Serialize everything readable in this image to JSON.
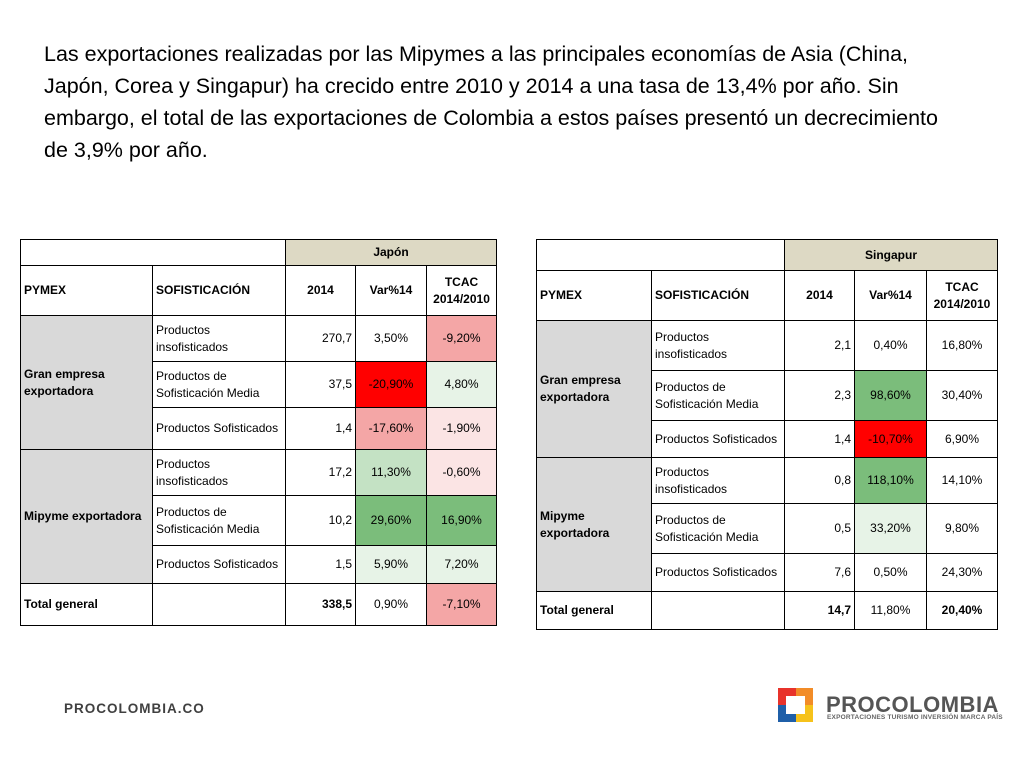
{
  "intro": "Las exportaciones realizadas por las Mipymes a las principales economías de Asia (China, Japón, Corea y Singapur) ha crecido entre 2010 y 2014 a una tasa de 13,4% por año. Sin embargo, el total de las exportaciones de Colombia a estos países presentó un decrecimiento de 3,9% por año.",
  "columns": {
    "pymex": "PYMEX",
    "sofisticacion": "SOFISTICACIÓN",
    "y2014": "2014",
    "var": "Var%14",
    "tcac": "TCAC 2014/2010"
  },
  "groups": {
    "gran": "Gran empresa exportadora",
    "mipyme": "Mipyme exportadora",
    "total": "Total general"
  },
  "products": {
    "insof": "Productos insofisticados",
    "media": "Productos de Sofisticación Media",
    "sof": "Productos Sofisticados"
  },
  "japon": {
    "title": "Japón",
    "rows": [
      {
        "v2014": "270,7",
        "var": "3,50%",
        "tcac": "-9,20%"
      },
      {
        "v2014": "37,5",
        "var": "-20,90%",
        "tcac": "4,80%"
      },
      {
        "v2014": "1,4",
        "var": "-17,60%",
        "tcac": "-1,90%"
      },
      {
        "v2014": "17,2",
        "var": "11,30%",
        "tcac": "-0,60%"
      },
      {
        "v2014": "10,2",
        "var": "29,60%",
        "tcac": "16,90%"
      },
      {
        "v2014": "1,5",
        "var": "5,90%",
        "tcac": "7,20%"
      }
    ],
    "total": {
      "v2014": "338,5",
      "var": "0,90%",
      "tcac": "-7,10%"
    }
  },
  "singapur": {
    "title": "Singapur",
    "rows": [
      {
        "v2014": "2,1",
        "var": "0,40%",
        "tcac": "16,80%"
      },
      {
        "v2014": "2,3",
        "var": "98,60%",
        "tcac": "30,40%"
      },
      {
        "v2014": "1,4",
        "var": "-10,70%",
        "tcac": "6,90%"
      },
      {
        "v2014": "0,8",
        "var": "118,10%",
        "tcac": "14,10%"
      },
      {
        "v2014": "0,5",
        "var": "33,20%",
        "tcac": "9,80%"
      },
      {
        "v2014": "7,6",
        "var": "0,50%",
        "tcac": "24,30%"
      }
    ],
    "total": {
      "v2014": "14,7",
      "var": "11,80%",
      "tcac": "20,40%"
    }
  },
  "heat_colors": {
    "red_strong": "#ff0000",
    "red_medium": "#f4a6a6",
    "red_light": "#fbe4e4",
    "green_strong": "#7bbd7b",
    "green_medium": "#c4e2c4",
    "green_light": "#e7f3e7",
    "header_tan": "#ddd9c4",
    "group_gray": "#d9d9d9"
  },
  "footer": {
    "website": "PROCOLOMBIA.CO",
    "logo_name": "PROCOLOMBIA",
    "logo_tagline": "EXPORTACIONES TURISMO INVERSIÓN MARCA PAÍS"
  }
}
